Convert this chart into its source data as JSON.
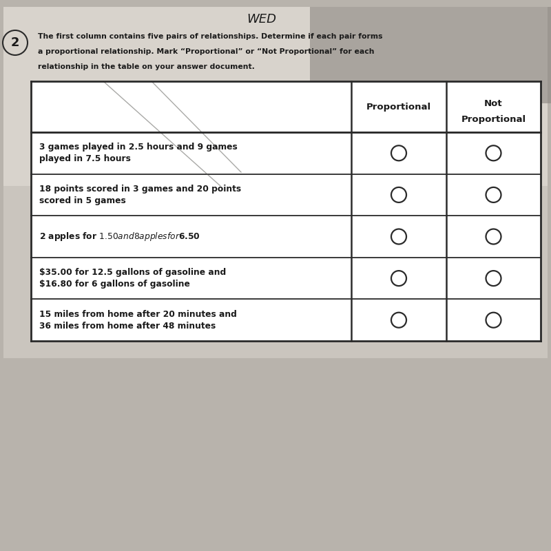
{
  "title_handwritten": "WED",
  "question_number": "2",
  "instructions_line1": "The first column contains five pairs of relationships. Determine if each pair forms",
  "instructions_line2": "a proportional relationship. Mark “Proportional” or “Not Proportional” for each",
  "instructions_line3": "relationship in the table on your answer document.",
  "col_headers": [
    "Proportional",
    "Not\nProportional"
  ],
  "rows": [
    "3 games played in 2.5 hours and 9 games\nplayed in 7.5 hours",
    "18 points scored in 3 games and 20 points\nscored in 5 games",
    "2 apples for $1.50 and 8 apples for $6.50",
    "$35.00 for 12.5 gallons of gasoline and\n$16.80 for 6 gallons of gasoline",
    "15 miles from home after 20 minutes and\n36 miles from home after 48 minutes"
  ],
  "bg_color": "#b8b3ac",
  "paper_color": "#d8d3cc",
  "table_bg": "#e2ddd8",
  "border_color": "#2a2a2a",
  "text_color": "#1a1a1a",
  "circle_color": "#2a2a2a",
  "fig_width": 8.0,
  "fig_height": 8.0
}
